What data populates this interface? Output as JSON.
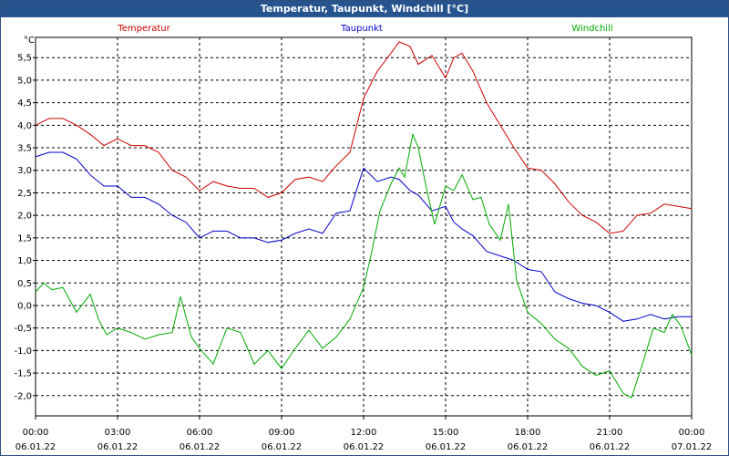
{
  "window": {
    "title": "Temperatur, Taupunkt, Windchill [°C]"
  },
  "chart_data": {
    "type": "line",
    "title": "Temperatur, Taupunkt, Windchill [°C]",
    "ylabel": "°C",
    "xlabel": "",
    "ylim": [
      -2.45,
      5.95
    ],
    "xlim": [
      0,
      24
    ],
    "grid": true,
    "yticks": [
      -2.0,
      -1.5,
      -1.0,
      -0.5,
      0.0,
      0.5,
      1.0,
      1.5,
      2.0,
      2.5,
      3.0,
      3.5,
      4.0,
      4.5,
      5.0,
      5.5
    ],
    "ytick_labels": [
      "-2,0",
      "-1,5",
      "-1,0",
      "-0,5",
      "0,0",
      "0,5",
      "1,0",
      "1,5",
      "2,0",
      "2,5",
      "3,0",
      "3,5",
      "4,0",
      "4,5",
      "5,0",
      "5,5"
    ],
    "xticks": [
      {
        "x": 0,
        "time": "00:00",
        "date": "06.01.22"
      },
      {
        "x": 3,
        "time": "03:00",
        "date": "06.01.22"
      },
      {
        "x": 6,
        "time": "06:00",
        "date": "06.01.22"
      },
      {
        "x": 9,
        "time": "09:00",
        "date": "06.01.22"
      },
      {
        "x": 12,
        "time": "12:00",
        "date": "06.01.22"
      },
      {
        "x": 15,
        "time": "15:00",
        "date": "06.01.22"
      },
      {
        "x": 18,
        "time": "18:00",
        "date": "06.01.22"
      },
      {
        "x": 21,
        "time": "21:00",
        "date": "06.01.22"
      },
      {
        "x": 24,
        "time": "00:00",
        "date": "07.01.22"
      }
    ],
    "series": [
      {
        "name": "Temperatur",
        "color": "#cc0000",
        "x": [
          0,
          0.5,
          1.0,
          1.5,
          2.0,
          2.5,
          3.0,
          3.5,
          4.0,
          4.5,
          5.0,
          5.5,
          6.0,
          6.5,
          7.0,
          7.5,
          8.0,
          8.5,
          9.0,
          9.5,
          10.0,
          10.5,
          11.0,
          11.5,
          12.0,
          12.5,
          13.0,
          13.3,
          13.7,
          14.0,
          14.5,
          15.0,
          15.3,
          15.6,
          16.0,
          16.5,
          17.0,
          17.5,
          18.0,
          18.5,
          19.0,
          19.5,
          20.0,
          20.5,
          21.0,
          21.5,
          22.0,
          22.5,
          23.0,
          23.5,
          24.0
        ],
        "values": [
          4.0,
          4.15,
          4.15,
          4.0,
          3.8,
          3.55,
          3.7,
          3.55,
          3.55,
          3.4,
          3.0,
          2.85,
          2.55,
          2.75,
          2.65,
          2.6,
          2.6,
          2.4,
          2.5,
          2.8,
          2.85,
          2.75,
          3.1,
          3.4,
          4.6,
          5.2,
          5.6,
          5.85,
          5.75,
          5.35,
          5.55,
          5.05,
          5.5,
          5.6,
          5.2,
          4.5,
          4.0,
          3.5,
          3.05,
          3.0,
          2.7,
          2.3,
          2.0,
          1.85,
          1.6,
          1.65,
          2.0,
          2.05,
          2.25,
          2.2,
          2.15
        ]
      },
      {
        "name": "Taupunkt",
        "color": "#0000cc",
        "x": [
          0,
          0.5,
          1.0,
          1.5,
          2.0,
          2.5,
          3.0,
          3.5,
          4.0,
          4.5,
          5.0,
          5.5,
          6.0,
          6.5,
          7.0,
          7.5,
          8.0,
          8.5,
          9.0,
          9.5,
          10.0,
          10.5,
          11.0,
          11.5,
          12.0,
          12.5,
          13.0,
          13.3,
          13.7,
          14.0,
          14.5,
          15.0,
          15.3,
          15.6,
          16.0,
          16.5,
          17.0,
          17.5,
          18.0,
          18.5,
          19.0,
          19.5,
          20.0,
          20.5,
          21.0,
          21.5,
          22.0,
          22.5,
          23.0,
          23.5,
          24.0
        ],
        "values": [
          3.3,
          3.4,
          3.4,
          3.25,
          2.9,
          2.65,
          2.65,
          2.4,
          2.4,
          2.25,
          2.0,
          1.85,
          1.5,
          1.65,
          1.65,
          1.5,
          1.5,
          1.4,
          1.45,
          1.6,
          1.7,
          1.6,
          2.05,
          2.1,
          3.05,
          2.75,
          2.85,
          2.8,
          2.55,
          2.45,
          2.1,
          2.2,
          1.85,
          1.7,
          1.55,
          1.2,
          1.1,
          1.0,
          0.8,
          0.75,
          0.3,
          0.15,
          0.05,
          0.0,
          -0.15,
          -0.35,
          -0.3,
          -0.2,
          -0.3,
          -0.25,
          -0.25
        ]
      },
      {
        "name": "Windchill",
        "color": "#00aa00",
        "x": [
          0,
          0.3,
          0.6,
          1.0,
          1.5,
          2.0,
          2.3,
          2.6,
          3.0,
          3.5,
          4.0,
          4.5,
          5.0,
          5.3,
          5.7,
          6.0,
          6.5,
          7.0,
          7.5,
          8.0,
          8.5,
          9.0,
          9.5,
          10.0,
          10.5,
          11.0,
          11.5,
          12.0,
          12.3,
          12.6,
          13.0,
          13.3,
          13.5,
          13.8,
          14.0,
          14.3,
          14.6,
          15.0,
          15.3,
          15.6,
          16.0,
          16.3,
          16.6,
          17.0,
          17.3,
          17.6,
          18.0,
          18.5,
          19.0,
          19.5,
          20.0,
          20.5,
          21.0,
          21.5,
          21.8,
          22.2,
          22.6,
          23.0,
          23.3,
          23.6,
          24.0
        ],
        "values": [
          0.3,
          0.5,
          0.35,
          0.4,
          -0.15,
          0.25,
          -0.3,
          -0.65,
          -0.5,
          -0.6,
          -0.75,
          -0.65,
          -0.6,
          0.2,
          -0.7,
          -0.95,
          -1.3,
          -0.5,
          -0.6,
          -1.3,
          -1.0,
          -1.4,
          -0.95,
          -0.55,
          -0.95,
          -0.7,
          -0.3,
          0.4,
          1.2,
          2.1,
          2.7,
          3.05,
          2.85,
          3.8,
          3.5,
          2.6,
          1.8,
          2.65,
          2.55,
          2.9,
          2.35,
          2.4,
          1.8,
          1.45,
          2.25,
          0.55,
          -0.15,
          -0.4,
          -0.75,
          -0.95,
          -1.35,
          -1.55,
          -1.45,
          -1.95,
          -2.05,
          -1.3,
          -0.5,
          -0.6,
          -0.2,
          -0.45,
          -1.1
        ]
      }
    ]
  }
}
